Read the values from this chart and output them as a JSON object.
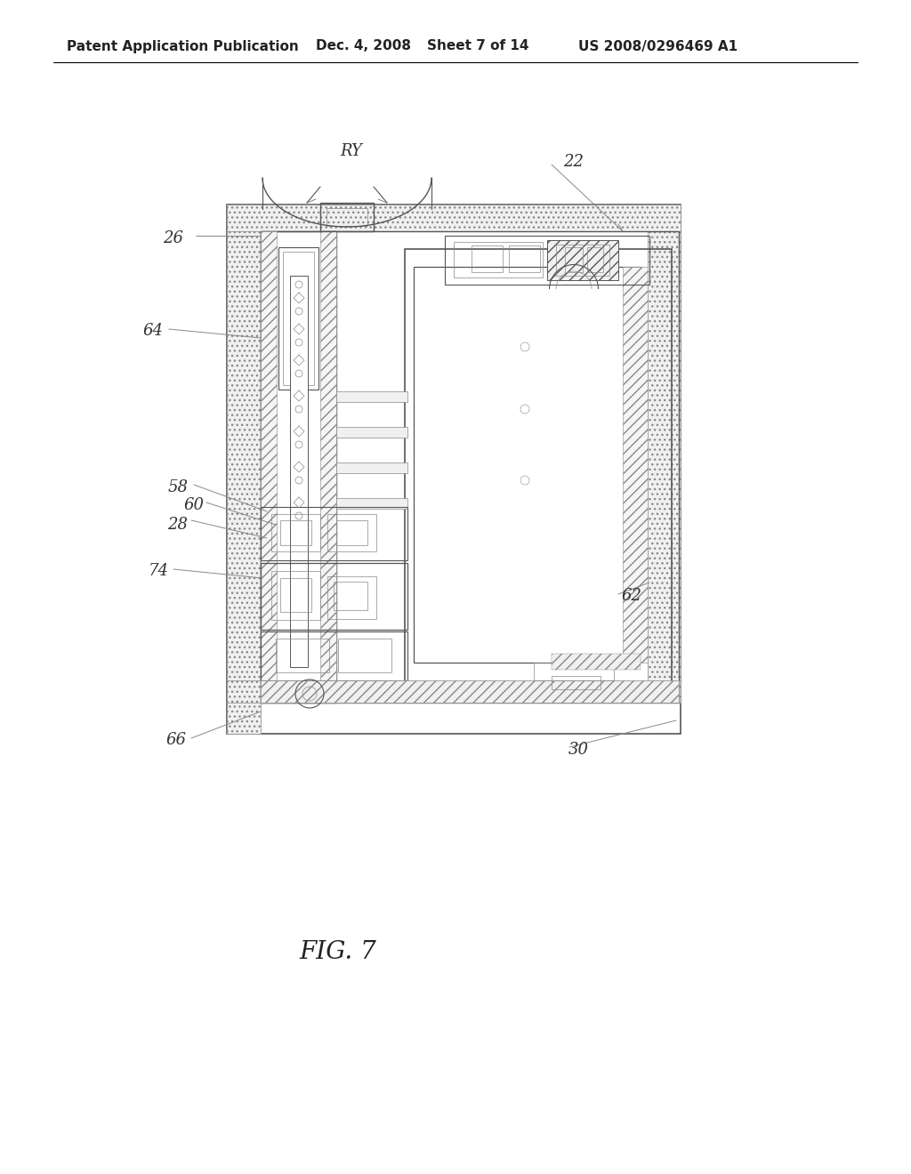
{
  "background_color": "#ffffff",
  "header_text": "Patent Application Publication",
  "header_date": "Dec. 4, 2008",
  "header_sheet": "Sheet 7 of 14",
  "header_patent": "US 2008/0296469 A1",
  "figure_label": "FIG. 7",
  "lc": "#888888",
  "lc_dark": "#555555",
  "lw_main": 1.0,
  "lw_thin": 0.6,
  "lw_thick": 1.5,
  "hatch_color": "#aaaaaa"
}
